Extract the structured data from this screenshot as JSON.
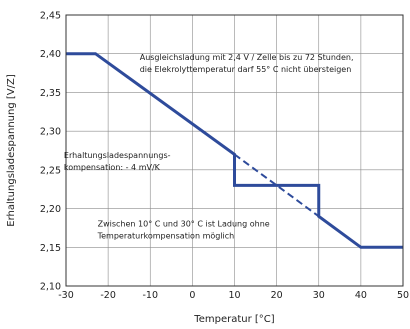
{
  "chart_data": {
    "type": "line",
    "xlabel": "Temperatur [°C]",
    "ylabel": "Erhaltungsladespannung [V/Z]",
    "xlim": [
      -30,
      50
    ],
    "ylim": [
      2.1,
      2.45
    ],
    "xticks": [
      "-30",
      "-20",
      "-10",
      "0",
      "10",
      "20",
      "30",
      "40",
      "50"
    ],
    "yticks": [
      "2,10",
      "2,15",
      "2,20",
      "2,25",
      "2,30",
      "2,35",
      "2,40",
      "2,45"
    ],
    "grid": true,
    "series": [
      {
        "style": "solid",
        "color": "#2e4b9b",
        "x": [
          -30,
          -23,
          10,
          10,
          30,
          30,
          40,
          50
        ],
        "y": [
          2.4,
          2.4,
          2.27,
          2.23,
          2.23,
          2.19,
          2.15,
          2.15
        ]
      },
      {
        "style": "dashed",
        "color": "#2e4b9b",
        "x": [
          10,
          30
        ],
        "y": [
          2.27,
          2.19
        ]
      }
    ],
    "annotations": [
      {
        "lines": [
          "Ausgleichsladung mit 2,4 V / Zelle bis zu 72 Stunden,",
          "die Elekrolyttemperatur darf 55° C nicht übersteigen"
        ],
        "x": -12.5,
        "y": 2.392
      },
      {
        "lines": [
          "Erhaltungsladespannungs-",
          "kompensation: - 4 mV/K"
        ],
        "x": -30.5,
        "y": 2.265
      },
      {
        "lines": [
          "Zwischen 10° C und 30° C ist Ladung ohne",
          "Temperaturkompensation möglich"
        ],
        "x": -22.5,
        "y": 2.177
      }
    ]
  }
}
